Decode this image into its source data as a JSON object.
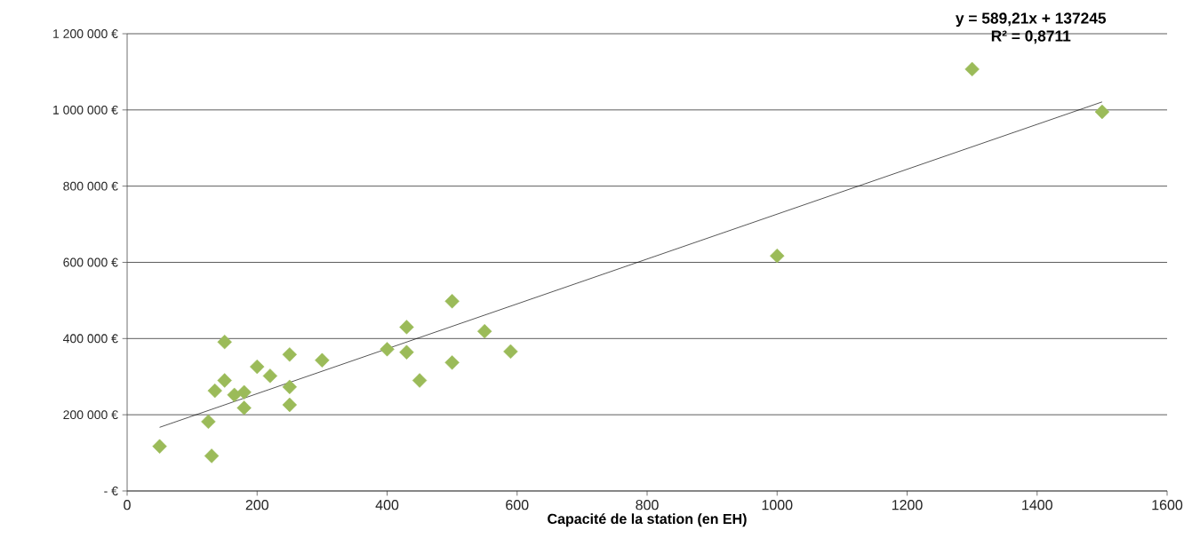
{
  "chart_data": {
    "type": "scatter",
    "xlabel": "Capacité de la station (en EH)",
    "annotations": [
      "y = 589,21x + 137245",
      "R² = 0,8711"
    ],
    "series": [
      {
        "color": "#9bbb59",
        "marker": "diamond",
        "x": [
          50,
          125,
          130,
          135,
          150,
          150,
          165,
          180,
          180,
          200,
          220,
          250,
          250,
          250,
          300,
          400,
          430,
          430,
          450,
          500,
          500,
          550,
          590,
          1000,
          1300,
          1500
        ],
        "values": [
          117000,
          182000,
          92000,
          263000,
          391000,
          290000,
          252000,
          259000,
          218000,
          326000,
          302000,
          358000,
          273000,
          226000,
          343000,
          372000,
          430000,
          364000,
          290000,
          498000,
          337000,
          419000,
          366000,
          617000,
          1107000,
          995000
        ]
      },
      {
        "type": "line",
        "color": "#000000",
        "marker": "none",
        "x": [
          50,
          1500
        ],
        "values": [
          167000,
          1021000
        ]
      }
    ],
    "xlim": [
      0,
      1600
    ],
    "xticks": [
      0,
      200,
      400,
      600,
      800,
      1000,
      1200,
      1400,
      1600
    ],
    "ylim": [
      0,
      1200000
    ],
    "yticks": [
      {
        "value": 0,
        "label": "-   €"
      },
      {
        "value": 200000,
        "label": "200 000 €"
      },
      {
        "value": 400000,
        "label": "400 000 €"
      },
      {
        "value": 600000,
        "label": "600 000 €"
      },
      {
        "value": 800000,
        "label": "800 000 €"
      },
      {
        "value": 1000000,
        "label": "1 000 000 €"
      },
      {
        "value": 1200000,
        "label": "1 200 000 €"
      }
    ],
    "grid": "y"
  }
}
